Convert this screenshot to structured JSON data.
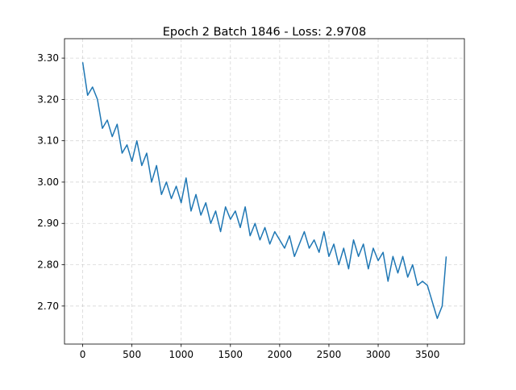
{
  "chart_data": {
    "type": "line",
    "title": "Epoch 2 Batch 1846 - Loss: 2.9708",
    "x": [
      0,
      50,
      100,
      150,
      200,
      250,
      300,
      350,
      400,
      450,
      500,
      550,
      600,
      650,
      700,
      750,
      800,
      850,
      900,
      950,
      1000,
      1050,
      1100,
      1150,
      1200,
      1250,
      1300,
      1350,
      1400,
      1450,
      1500,
      1550,
      1600,
      1650,
      1700,
      1750,
      1800,
      1850,
      1900,
      1950,
      2000,
      2050,
      2100,
      2150,
      2200,
      2250,
      2300,
      2350,
      2400,
      2450,
      2500,
      2550,
      2600,
      2650,
      2700,
      2750,
      2800,
      2850,
      2900,
      2950,
      3000,
      3050,
      3100,
      3150,
      3200,
      3250,
      3300,
      3350,
      3400,
      3450,
      3500,
      3550,
      3600,
      3650,
      3691
    ],
    "series": [
      {
        "color": "#1f77b4",
        "values": [
          3.29,
          3.21,
          3.23,
          3.2,
          3.13,
          3.15,
          3.11,
          3.14,
          3.07,
          3.09,
          3.05,
          3.1,
          3.04,
          3.07,
          3.0,
          3.04,
          2.97,
          3.0,
          2.96,
          2.99,
          2.95,
          3.01,
          2.93,
          2.97,
          2.92,
          2.95,
          2.9,
          2.93,
          2.88,
          2.94,
          2.91,
          2.93,
          2.89,
          2.94,
          2.87,
          2.9,
          2.86,
          2.89,
          2.85,
          2.88,
          2.86,
          2.84,
          2.87,
          2.82,
          2.85,
          2.88,
          2.84,
          2.86,
          2.83,
          2.88,
          2.82,
          2.85,
          2.8,
          2.84,
          2.79,
          2.86,
          2.82,
          2.85,
          2.79,
          2.84,
          2.81,
          2.83,
          2.76,
          2.82,
          2.78,
          2.82,
          2.77,
          2.8,
          2.75,
          2.76,
          2.75,
          2.71,
          2.67,
          2.7,
          2.82
        ]
      }
    ],
    "xlim": [
      -184.6,
      3875.6
    ],
    "xticks": [
      0,
      500,
      1000,
      1500,
      2000,
      2500,
      3000,
      3500
    ],
    "ylim": [
      2.608,
      3.347
    ],
    "yticks": [
      {
        "value": 2.7,
        "label": "2.70"
      },
      {
        "value": 2.8,
        "label": "2.80"
      },
      {
        "value": 2.9,
        "label": "2.90"
      },
      {
        "value": 3.0,
        "label": "3.00"
      },
      {
        "value": 3.1,
        "label": "3.10"
      },
      {
        "value": 3.2,
        "label": "3.20"
      },
      {
        "value": 3.3,
        "label": "3.30"
      }
    ],
    "grid": true
  }
}
